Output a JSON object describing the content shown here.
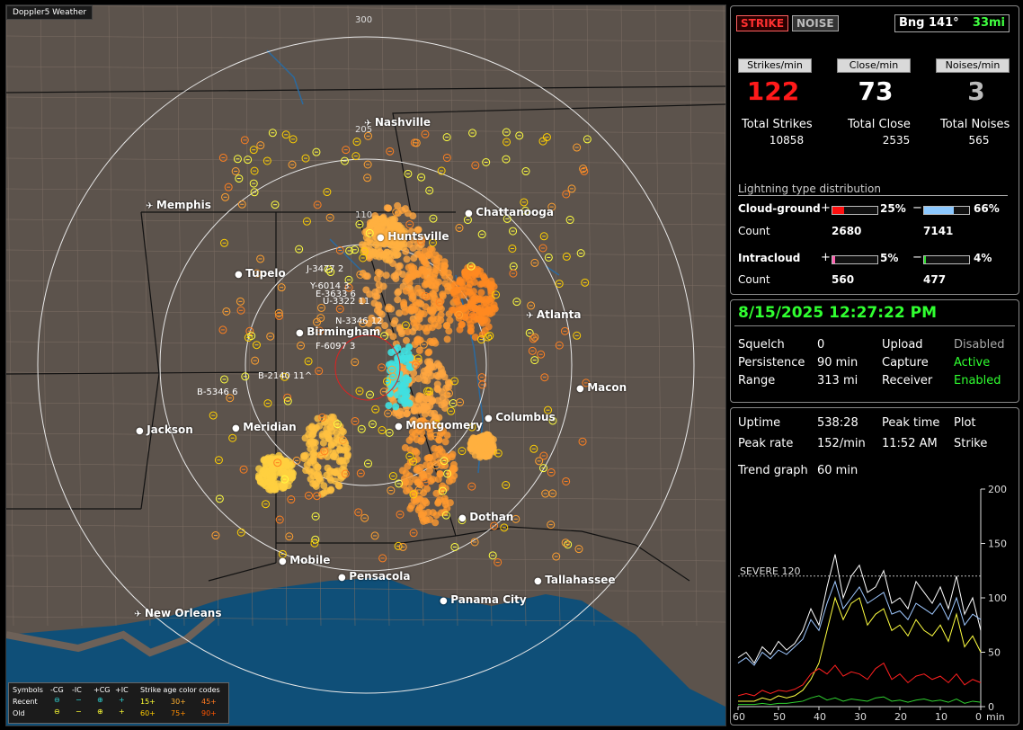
{
  "app_title": "Doppler5 Weather",
  "map": {
    "range_labels": [
      "300",
      "205",
      "110"
    ],
    "cities": [
      {
        "name": "Nashville",
        "airport": true
      },
      {
        "name": "Memphis",
        "airport": true
      },
      {
        "name": "Chattanooga",
        "airport": false
      },
      {
        "name": "Huntsville",
        "airport": false
      },
      {
        "name": "Tupelo",
        "airport": false
      },
      {
        "name": "Atlanta",
        "airport": true
      },
      {
        "name": "Birmingham",
        "airport": false
      },
      {
        "name": "Macon",
        "airport": false
      },
      {
        "name": "Montgomery",
        "airport": false
      },
      {
        "name": "Columbus",
        "airport": false
      },
      {
        "name": "Jackson",
        "airport": false
      },
      {
        "name": "Meridian",
        "airport": false
      },
      {
        "name": "Dothan",
        "airport": false
      },
      {
        "name": "Mobile",
        "airport": false
      },
      {
        "name": "Pensacola",
        "airport": false
      },
      {
        "name": "Tallahassee",
        "airport": false
      },
      {
        "name": "Panama City",
        "airport": false
      },
      {
        "name": "New Orleans",
        "airport": true
      }
    ],
    "track_labels": [
      "J-3477 2",
      "Y-6014 3",
      "E-3633 6",
      "U-3322 11",
      "N-3346 12",
      "F-6097 3",
      "B-2140 11^",
      "B-5346 6"
    ]
  },
  "legend": {
    "symbols_label": "Symbols",
    "cols": [
      "-CG",
      "-IC",
      "+CG",
      "+IC"
    ],
    "age_label": "Strike age color codes",
    "recent_label": "Recent",
    "old_label": "Old",
    "recent_ages": [
      "15+",
      "30+",
      "45+"
    ],
    "old_ages": [
      "60+",
      "75+",
      "90+"
    ],
    "colors": {
      "age15": "#ffff33",
      "age30": "#ffb030",
      "age45": "#ff7a20",
      "age60": "#ffcc00",
      "age75": "#ff8c00",
      "age90": "#ff5500"
    }
  },
  "stats": {
    "strike_btn": "STRIKE",
    "noise_btn": "NOISE",
    "bearing": "Bng 141°",
    "distance": "33mi",
    "strikes_per_min_label": "Strikes/min",
    "close_per_min_label": "Close/min",
    "noises_per_min_label": "Noises/min",
    "strikes_per_min": "122",
    "close_per_min": "73",
    "noises_per_min": "3",
    "total_strikes_label": "Total Strikes",
    "total_close_label": "Total Close",
    "total_noises_label": "Total Noises",
    "total_strikes": "10858",
    "total_close": "2535",
    "total_noises": "565",
    "dist_title": "Lightning type distribution",
    "cg_label": "Cloud-ground",
    "ic_label": "Intracloud",
    "count_label": "Count",
    "cg_pos_pct": "25%",
    "cg_neg_pct": "66%",
    "cg_pos_count": "2680",
    "cg_neg_count": "7141",
    "ic_pos_pct": "5%",
    "ic_neg_pct": "4%",
    "ic_pos_count": "560",
    "ic_neg_count": "477",
    "cg_pos_frac": 0.25,
    "cg_neg_frac": 0.66,
    "ic_pos_frac": 0.05,
    "ic_neg_frac": 0.04
  },
  "status": {
    "datetime": "8/15/2025 12:27:22 PM",
    "squelch_label": "Squelch",
    "squelch": "0",
    "persistence_label": "Persistence",
    "persistence": "90 min",
    "range_label": "Range",
    "range": "313 mi",
    "upload_label": "Upload",
    "upload": "Disabled",
    "capture_label": "Capture",
    "capture": "Active",
    "receiver_label": "Receiver",
    "receiver": "Enabled"
  },
  "trend": {
    "uptime_label": "Uptime",
    "uptime": "538:28",
    "peak_time_label": "Peak time",
    "peak_time": "11:52 AM",
    "plot_label": "Plot",
    "plot": "Strike",
    "peak_rate_label": "Peak rate",
    "peak_rate": "152/min",
    "trend_graph_label": "Trend graph",
    "trend_graph": "60 min",
    "severe_label": "SEVERE 120",
    "y_ticks": [
      "200",
      "150",
      "100",
      "50",
      "0"
    ],
    "x_ticks": [
      "60",
      "50",
      "40",
      "30",
      "20",
      "10",
      "0"
    ],
    "x_unit": "min"
  },
  "chart_data": {
    "type": "line",
    "x": [
      60,
      58,
      56,
      54,
      52,
      50,
      48,
      46,
      44,
      42,
      40,
      38,
      36,
      34,
      32,
      30,
      28,
      26,
      24,
      22,
      20,
      18,
      16,
      14,
      12,
      10,
      8,
      6,
      4,
      2,
      0
    ],
    "series": [
      {
        "color": "#ffffff",
        "values": [
          45,
          50,
          40,
          55,
          48,
          60,
          52,
          58,
          70,
          90,
          75,
          110,
          140,
          100,
          120,
          130,
          105,
          110,
          125,
          95,
          100,
          90,
          115,
          105,
          95,
          110,
          90,
          120,
          85,
          100,
          70
        ]
      },
      {
        "color": "#9fc8ff",
        "values": [
          40,
          45,
          38,
          50,
          44,
          52,
          48,
          55,
          62,
          80,
          70,
          95,
          115,
          90,
          100,
          110,
          95,
          100,
          105,
          85,
          88,
          80,
          95,
          90,
          85,
          95,
          80,
          100,
          75,
          85,
          80
        ]
      },
      {
        "color": "#ffff40",
        "values": [
          5,
          5,
          5,
          8,
          6,
          10,
          8,
          10,
          15,
          25,
          40,
          70,
          100,
          80,
          95,
          100,
          75,
          85,
          90,
          70,
          75,
          65,
          80,
          70,
          65,
          75,
          60,
          85,
          55,
          65,
          50
        ]
      },
      {
        "color": "#ff2020",
        "values": [
          10,
          12,
          10,
          15,
          12,
          15,
          14,
          16,
          20,
          30,
          35,
          30,
          38,
          28,
          32,
          30,
          25,
          35,
          40,
          25,
          30,
          22,
          28,
          30,
          25,
          28,
          22,
          30,
          20,
          25,
          22
        ]
      },
      {
        "color": "#30d030",
        "values": [
          2,
          2,
          2,
          3,
          2,
          3,
          3,
          4,
          5,
          8,
          10,
          6,
          8,
          5,
          7,
          6,
          5,
          8,
          9,
          5,
          6,
          4,
          6,
          7,
          5,
          6,
          4,
          7,
          3,
          5,
          4
        ]
      }
    ],
    "ylim": [
      0,
      200
    ],
    "severe_level": 120
  }
}
